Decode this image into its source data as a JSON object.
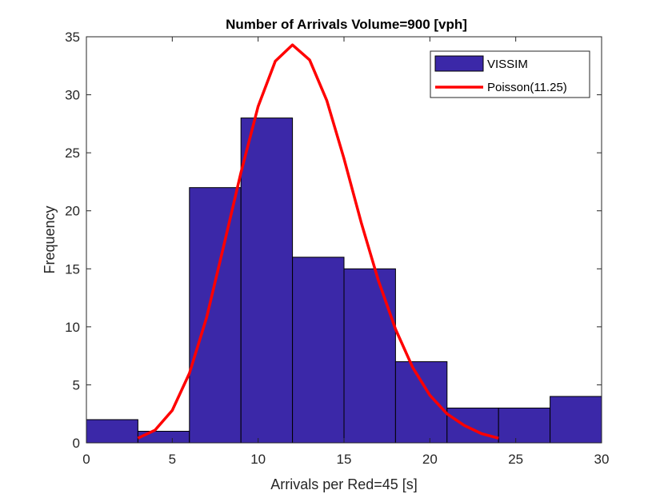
{
  "chart_data": {
    "type": "bar",
    "title": "Number of Arrivals Volume=900 [vph]",
    "xlabel": "Arrivals per Red=45 [s]",
    "ylabel": "Frequency",
    "xlim": [
      0,
      30
    ],
    "ylim": [
      0,
      35
    ],
    "xticks": [
      0,
      5,
      10,
      15,
      20,
      25,
      30
    ],
    "yticks": [
      0,
      5,
      10,
      15,
      20,
      25,
      30,
      35
    ],
    "grid": false,
    "legend_position": "top-right",
    "bar_color": "#3b28a8",
    "line_color": "#ff0000",
    "series": [
      {
        "name": "VISSIM",
        "kind": "histogram",
        "bin_edges": [
          0,
          3,
          6,
          9,
          12,
          15,
          18,
          21,
          24,
          27,
          30
        ],
        "values": [
          2,
          1,
          22,
          28,
          16,
          15,
          7,
          3,
          3,
          4
        ]
      },
      {
        "name": "Poisson(11.25)",
        "kind": "line",
        "x": [
          3,
          4,
          5,
          6,
          7,
          8,
          9,
          10,
          11,
          12,
          13,
          14,
          15,
          16,
          17,
          18,
          19,
          20,
          21,
          22,
          23,
          24
        ],
        "y": [
          0.4,
          1.1,
          2.8,
          6.0,
          10.8,
          17.0,
          23.3,
          29.0,
          32.9,
          34.3,
          33.0,
          29.5,
          24.5,
          19.0,
          14.0,
          9.8,
          6.5,
          4.1,
          2.5,
          1.5,
          0.8,
          0.4
        ]
      }
    ]
  }
}
